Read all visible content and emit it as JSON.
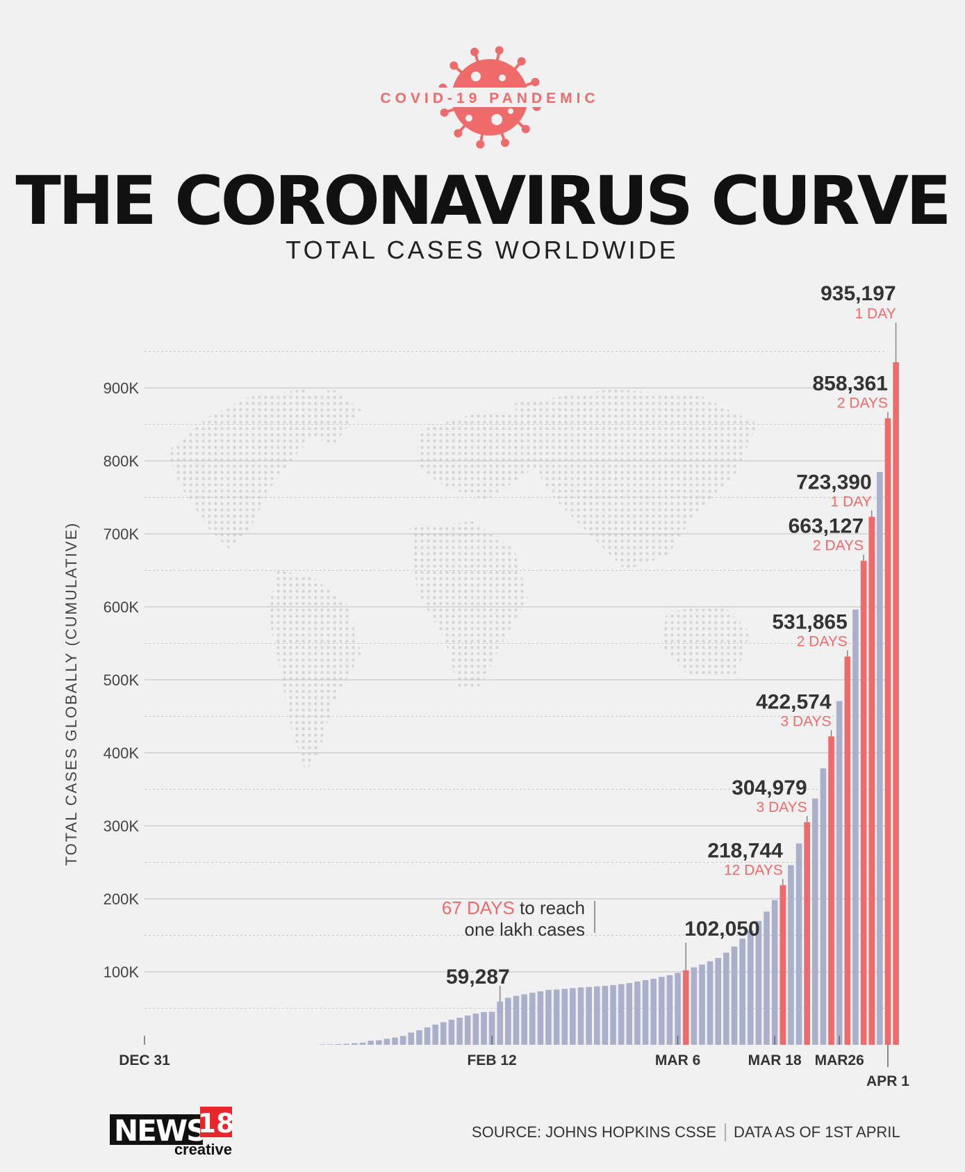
{
  "header": {
    "kicker": "COVID-19 PANDEMIC",
    "title": "THE CORONAVIRUS CURVE",
    "subtitle": "TOTAL CASES WORLDWIDE"
  },
  "footer": {
    "logo_main": "NEWS",
    "logo_num": "18",
    "logo_sub": "creative",
    "source": "SOURCE: JOHNS HOPKINS CSSE",
    "data_as_of": "DATA AS OF 1ST APRIL"
  },
  "annotation": {
    "highlight": "67 DAYS",
    "line1_rest": " to reach",
    "line2": "one lakh cases"
  },
  "colors": {
    "accent": "#ef6a6a",
    "bar": "#aab0cb",
    "text": "#333333",
    "grid": "#c8c8c8"
  },
  "chart_data": {
    "type": "bar",
    "ylabel": "TOTAL CASES GLOBALLY (CUMULATIVE)",
    "ylim": [
      0,
      1000000
    ],
    "yticks": [
      100000,
      200000,
      300000,
      400000,
      500000,
      600000,
      700000,
      800000,
      900000
    ],
    "ytick_labels": [
      "100K",
      "200K",
      "300K",
      "400K",
      "500K",
      "600K",
      "700K",
      "800K",
      "900K"
    ],
    "xtick_labels": [
      {
        "index": 0,
        "label": "DEC 31"
      },
      {
        "index": 43,
        "label": "FEB 12"
      },
      {
        "index": 66,
        "label": "MAR 6"
      },
      {
        "index": 78,
        "label": "MAR 18"
      },
      {
        "index": 86,
        "label": "MAR26"
      },
      {
        "index": 92,
        "label": "APR 1"
      }
    ],
    "grid": true,
    "bar_start_index": 22,
    "values": [
      555,
      654,
      941,
      1434,
      2118,
      2927,
      5578,
      6166,
      8234,
      9927,
      12038,
      16787,
      19881,
      23892,
      27635,
      30817,
      34391,
      37120,
      40150,
      42762,
      44802,
      45221,
      59287,
      64438,
      67100,
      69197,
      71329,
      73332,
      75184,
      75700,
      76677,
      77673,
      78651,
      79205,
      80087,
      80828,
      81820,
      83112,
      84615,
      86604,
      88585,
      90443,
      93016,
      95314,
      98425,
      102050,
      106099,
      109991,
      114381,
      118948,
      126214,
      134576,
      145483,
      156653,
      169593,
      182490,
      198234,
      218744,
      246088,
      275867,
      304979,
      337459,
      378830,
      422574,
      471035,
      531865,
      596366,
      663127,
      723390,
      784794,
      858361,
      935197
    ],
    "highlight_values": [
      102050,
      218744,
      304979,
      422574,
      531865,
      663127,
      723390,
      858361,
      935197
    ],
    "callouts": [
      {
        "value": 59287,
        "label": "59,287",
        "days": ""
      },
      {
        "value": 102050,
        "label": "102,050",
        "days": ""
      },
      {
        "value": 218744,
        "label": "218,744",
        "days": "12 DAYS"
      },
      {
        "value": 304979,
        "label": "304,979",
        "days": "3 DAYS"
      },
      {
        "value": 422574,
        "label": "422,574",
        "days": "3 DAYS"
      },
      {
        "value": 531865,
        "label": "531,865",
        "days": "2 DAYS"
      },
      {
        "value": 663127,
        "label": "663,127",
        "days": "2 DAYS"
      },
      {
        "value": 723390,
        "label": "723,390",
        "days": "1 DAY"
      },
      {
        "value": 858361,
        "label": "858,361",
        "days": "2 DAYS"
      },
      {
        "value": 935197,
        "label": "935,197",
        "days": "1 DAY"
      }
    ]
  }
}
